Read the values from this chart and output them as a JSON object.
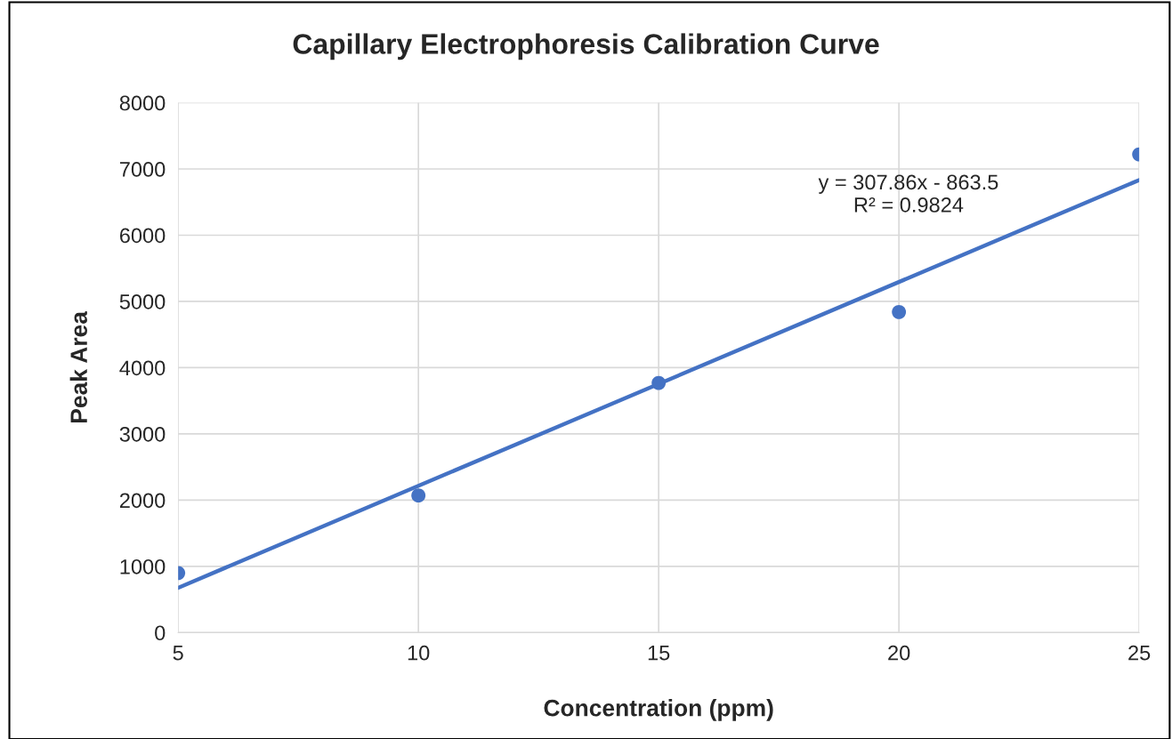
{
  "chart_data": {
    "type": "scatter",
    "title": "Capillary Electrophoresis Calibration Curve",
    "xlabel": "Concentration (ppm)",
    "ylabel": "Peak Area",
    "x": [
      5,
      10,
      15,
      20,
      25
    ],
    "series": [
      {
        "color": "#4472c4",
        "values": [
          900,
          2070,
          3770,
          4840,
          7220
        ],
        "marker": "circle"
      },
      {
        "type": "line",
        "color": "#4472c4",
        "x": [
          5,
          25
        ],
        "values": [
          676,
          6833
        ],
        "marker": "none",
        "line_style": "solid"
      }
    ],
    "annotations": [
      "y = 307.86x - 863.5\nR² = 0.9824"
    ],
    "xlim": [
      5,
      25
    ],
    "xticks": [
      5,
      10,
      15,
      20,
      25
    ],
    "ylim": [
      0,
      8000
    ],
    "yticks": [
      0,
      1000,
      2000,
      3000,
      4000,
      5000,
      6000,
      7000,
      8000
    ],
    "grid": true,
    "legend": false
  }
}
